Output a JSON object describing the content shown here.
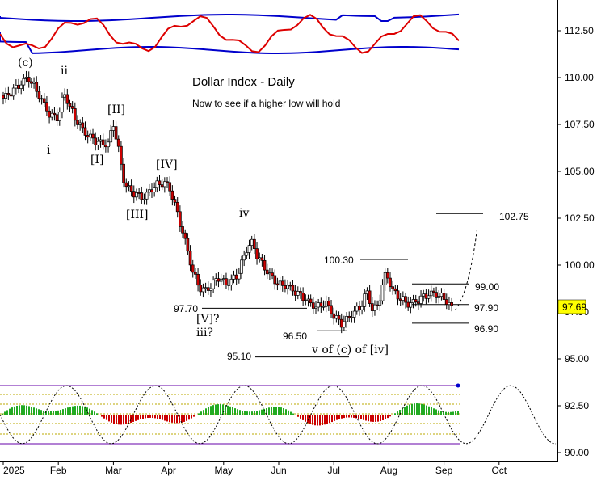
{
  "chart_data": {
    "type": "candlestick",
    "title": "Dollar Index - Daily",
    "subtitle": "Now to see if a higher low will hold",
    "y_axis": {
      "ticks": [
        "112.50",
        "110.00",
        "107.50",
        "105.00",
        "102.50",
        "100.00",
        "97.50",
        "95.00",
        "92.50",
        "90.00"
      ],
      "tick_values": [
        112.5,
        110,
        107.5,
        105,
        102.5,
        100,
        97.5,
        95,
        92.5,
        90
      ],
      "range": [
        89.9,
        114.3
      ],
      "side": "right"
    },
    "x_axis": {
      "ticks": [
        "2025",
        "Feb",
        "Mar",
        "Apr",
        "May",
        "Jun",
        "Jul",
        "Aug",
        "Sep",
        "Oct"
      ]
    },
    "last_value": {
      "text": "97.69",
      "value": 97.69,
      "bg_color": "#ffff00"
    },
    "close_path": [
      {
        "month": 0.0,
        "close": 108.9
      },
      {
        "month": 0.2,
        "close": 109.4
      },
      {
        "month": 0.45,
        "close": 110.0
      },
      {
        "month": 0.6,
        "close": 109.3
      },
      {
        "month": 0.85,
        "close": 108.0
      },
      {
        "month": 1.0,
        "close": 107.9
      },
      {
        "month": 1.1,
        "close": 109.2
      },
      {
        "month": 1.3,
        "close": 107.8
      },
      {
        "month": 1.5,
        "close": 107.0
      },
      {
        "month": 1.7,
        "close": 106.6
      },
      {
        "month": 1.9,
        "close": 106.4
      },
      {
        "month": 2.0,
        "close": 107.5
      },
      {
        "month": 2.1,
        "close": 106.0
      },
      {
        "month": 2.2,
        "close": 104.3
      },
      {
        "month": 2.35,
        "close": 103.9
      },
      {
        "month": 2.55,
        "close": 103.6
      },
      {
        "month": 2.75,
        "close": 104.2
      },
      {
        "month": 2.95,
        "close": 104.4
      },
      {
        "month": 3.05,
        "close": 103.9
      },
      {
        "month": 3.15,
        "close": 102.9
      },
      {
        "month": 3.3,
        "close": 101.3
      },
      {
        "month": 3.45,
        "close": 99.5
      },
      {
        "month": 3.6,
        "close": 98.6
      },
      {
        "month": 3.75,
        "close": 98.8
      },
      {
        "month": 3.9,
        "close": 99.4
      },
      {
        "month": 4.05,
        "close": 99.0
      },
      {
        "month": 4.25,
        "close": 99.4
      },
      {
        "month": 4.4,
        "close": 100.7
      },
      {
        "month": 4.5,
        "close": 101.3
      },
      {
        "month": 4.6,
        "close": 100.6
      },
      {
        "month": 4.8,
        "close": 99.6
      },
      {
        "month": 5.0,
        "close": 98.9
      },
      {
        "month": 5.15,
        "close": 98.9
      },
      {
        "month": 5.3,
        "close": 98.6
      },
      {
        "month": 5.45,
        "close": 98.3
      },
      {
        "month": 5.55,
        "close": 98.0
      },
      {
        "month": 5.7,
        "close": 97.7
      },
      {
        "month": 5.85,
        "close": 98.0
      },
      {
        "month": 6.0,
        "close": 97.3
      },
      {
        "month": 6.15,
        "close": 96.9
      },
      {
        "month": 6.3,
        "close": 97.3
      },
      {
        "month": 6.5,
        "close": 97.8
      },
      {
        "month": 6.6,
        "close": 98.6
      },
      {
        "month": 6.7,
        "close": 97.6
      },
      {
        "month": 6.8,
        "close": 97.9
      },
      {
        "month": 6.95,
        "close": 99.7
      },
      {
        "month": 7.05,
        "close": 98.7
      },
      {
        "month": 7.2,
        "close": 98.2
      },
      {
        "month": 7.35,
        "close": 97.9
      },
      {
        "month": 7.5,
        "close": 98.1
      },
      {
        "month": 7.65,
        "close": 98.4
      },
      {
        "month": 7.8,
        "close": 98.5
      },
      {
        "month": 8.0,
        "close": 98.2
      },
      {
        "month": 8.15,
        "close": 97.69
      }
    ],
    "horizontal_levels": [
      {
        "label": "102.75",
        "value": 102.75
      },
      {
        "label": "100.30",
        "value": 100.3
      },
      {
        "label": "99.00",
        "value": 99.0
      },
      {
        "label": "97.90",
        "value": 97.9
      },
      {
        "label": "97.70",
        "value": 97.7
      },
      {
        "label": "96.90",
        "value": 96.9
      },
      {
        "label": "96.50",
        "value": 96.5
      },
      {
        "label": "95.10",
        "value": 95.1
      }
    ],
    "wave_labels": [
      "(c)",
      "i",
      "ii",
      "[I]",
      "[II]",
      "[III]",
      "[IV]",
      "iv",
      "[V]?",
      "iii?",
      "v of (c) of [iv]"
    ],
    "indicators": {
      "top_panel": {
        "lines": [
          "band-upper",
          "band-lower",
          "oscillator"
        ],
        "band_color": "#0000cc",
        "oscillator_color": "#dd0000"
      },
      "bottom_panel": {
        "histogram_up_color": "#22aa22",
        "histogram_down_color": "#cc0000",
        "cycle_line": "dotted"
      }
    },
    "colors": {
      "up_candle": "#ffffff",
      "down_candle": "#cc0000",
      "projection": "#000000"
    },
    "grid": false
  }
}
